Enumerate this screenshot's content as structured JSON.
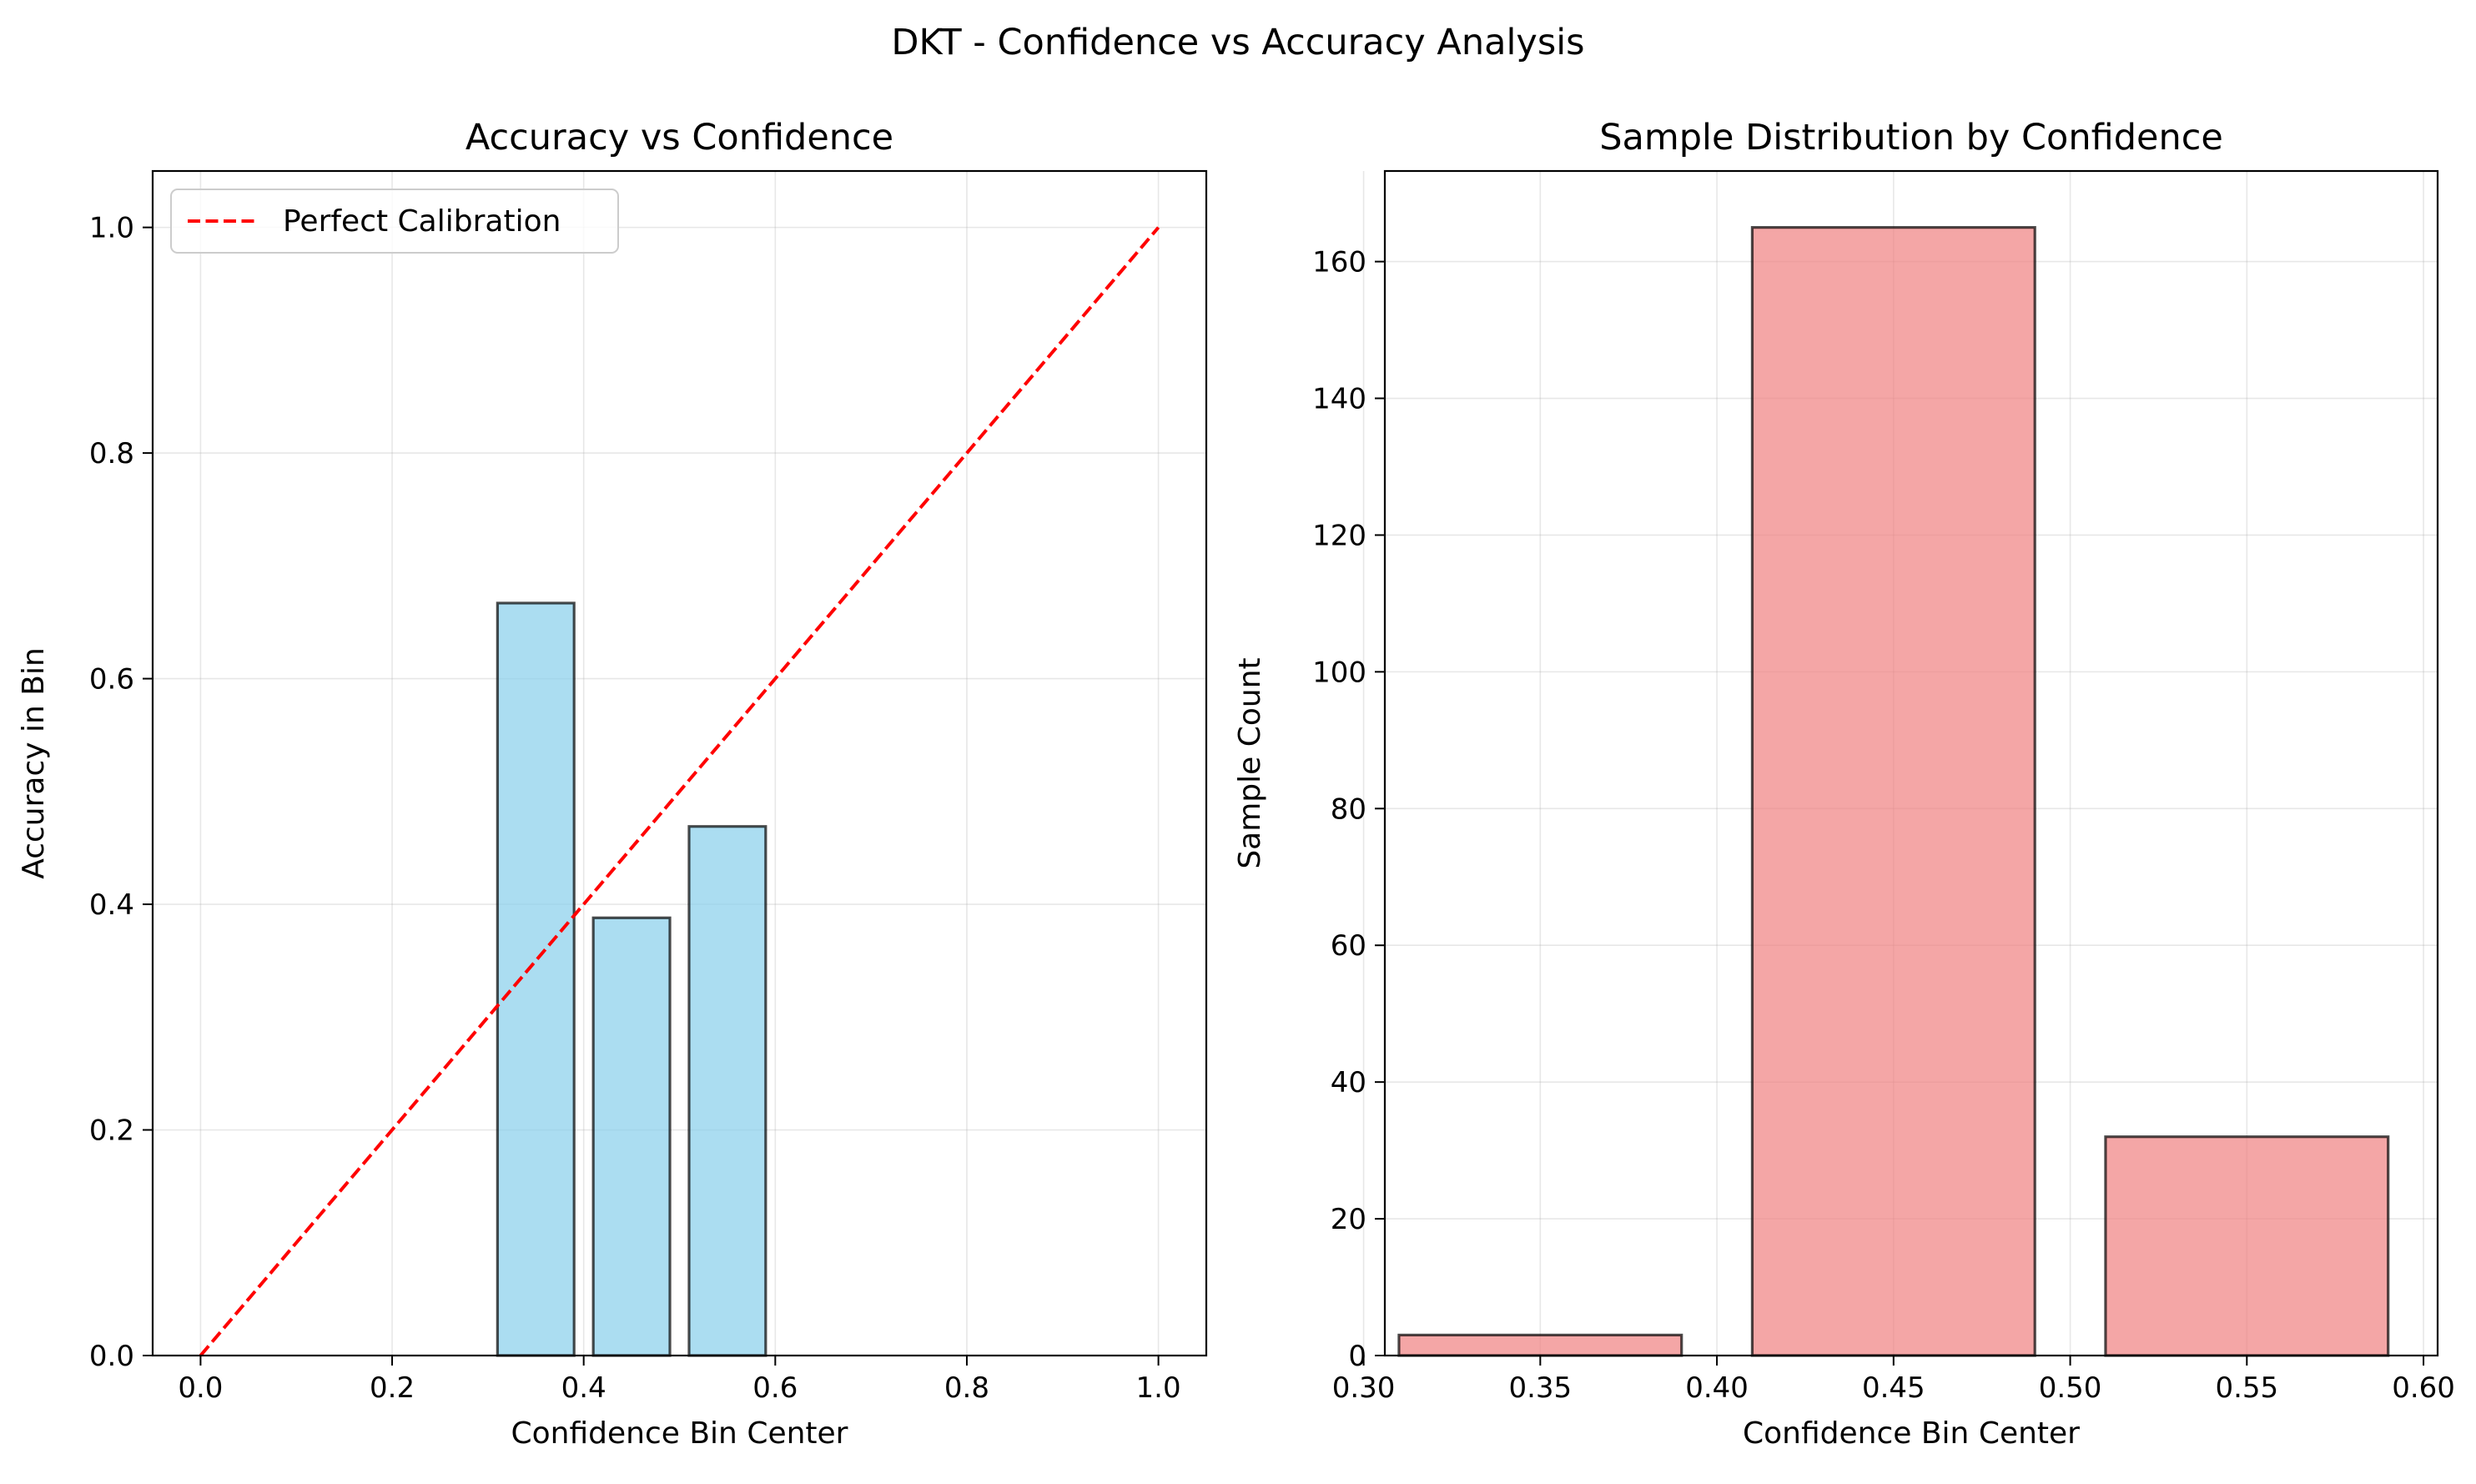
{
  "figure": {
    "suptitle": "DKT - Confidence vs Accuracy Analysis"
  },
  "chart_data": [
    {
      "type": "bar",
      "title": "Accuracy vs Confidence",
      "xlabel": "Confidence Bin Center",
      "ylabel": "Accuracy in Bin",
      "xlim": [
        -0.05,
        1.05
      ],
      "ylim": [
        0,
        1.05
      ],
      "bar_width": 0.08,
      "x": [
        0.35,
        0.45,
        0.55
      ],
      "values": [
        0.667,
        0.388,
        0.469
      ],
      "bar_color": "#87CEEB",
      "bar_edge": "#000000",
      "xticks": [
        0.0,
        0.2,
        0.4,
        0.6,
        0.8,
        1.0
      ],
      "xtick_labels": [
        "0.0",
        "0.2",
        "0.4",
        "0.6",
        "0.8",
        "1.0"
      ],
      "yticks": [
        0.0,
        0.2,
        0.4,
        0.6,
        0.8,
        1.0
      ],
      "ytick_labels": [
        "0.0",
        "0.2",
        "0.4",
        "0.6",
        "0.8",
        "1.0"
      ],
      "grid": true,
      "reference_line": {
        "name": "Perfect Calibration",
        "x": [
          0,
          1
        ],
        "y": [
          0,
          1
        ],
        "color": "#FF0000",
        "style": "dashed"
      },
      "legend": {
        "position": "top-left",
        "entries": [
          "Perfect Calibration"
        ]
      }
    },
    {
      "type": "bar",
      "title": "Sample Distribution by Confidence",
      "xlabel": "Confidence Bin Center",
      "ylabel": "Sample Count",
      "xlim": [
        0.306,
        0.604
      ],
      "ylim": [
        0,
        173.25
      ],
      "bar_width": 0.08,
      "x": [
        0.35,
        0.45,
        0.55
      ],
      "values": [
        3,
        165,
        32
      ],
      "bar_color": "#F08080",
      "bar_edge": "#000000",
      "xticks": [
        0.3,
        0.35,
        0.4,
        0.45,
        0.5,
        0.55,
        0.6
      ],
      "xtick_labels": [
        "0.30",
        "0.35",
        "0.40",
        "0.45",
        "0.50",
        "0.55",
        "0.60"
      ],
      "yticks": [
        0,
        20,
        40,
        60,
        80,
        100,
        120,
        140,
        160
      ],
      "ytick_labels": [
        "0",
        "20",
        "40",
        "60",
        "80",
        "100",
        "120",
        "140",
        "160"
      ],
      "grid": true
    }
  ]
}
